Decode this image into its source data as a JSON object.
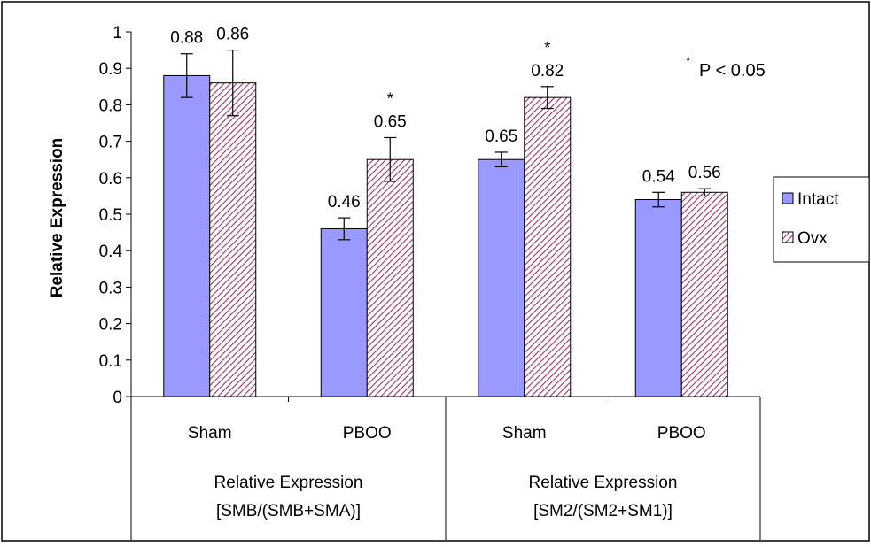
{
  "chart_data": {
    "type": "bar",
    "title": "",
    "ylabel": "Relative Expression",
    "ylim": [
      0,
      1
    ],
    "yticks": [
      "0",
      "0.1",
      "0.2",
      "0.3",
      "0.4",
      "0.5",
      "0.6",
      "0.7",
      "0.8",
      "0.9",
      "1"
    ],
    "categories": [
      "Sham",
      "PBOO",
      "Sham",
      "PBOO"
    ],
    "groups": [
      "Relative Expression [SMB/(SMB+SMA)]",
      "Relative Expression [SM2/(SM2+SM1)]"
    ],
    "group_line1": [
      "Relative Expression",
      "Relative Expression"
    ],
    "group_line2": [
      "[SMB/(SMB+SMA)]",
      "[SM2/(SM2+SM1)]"
    ],
    "series": [
      {
        "name": "Intact",
        "values": [
          0.88,
          0.46,
          0.65,
          0.54
        ],
        "labels": [
          "0.88",
          "0.46",
          "0.65",
          "0.54"
        ],
        "err": [
          0.06,
          0.03,
          0.02,
          0.02
        ],
        "color": "#9999ff",
        "significant": [
          false,
          false,
          false,
          false
        ]
      },
      {
        "name": "Ovx",
        "values": [
          0.86,
          0.65,
          0.82,
          0.56
        ],
        "labels": [
          "0.86",
          "0.65",
          "0.82",
          "0.56"
        ],
        "err": [
          0.09,
          0.06,
          0.03,
          0.01
        ],
        "color": "#993366",
        "significant": [
          false,
          true,
          true,
          false
        ]
      }
    ],
    "significance_marker": "*",
    "annotation": "P < 0.05",
    "legend_position": "right",
    "grid": false
  }
}
